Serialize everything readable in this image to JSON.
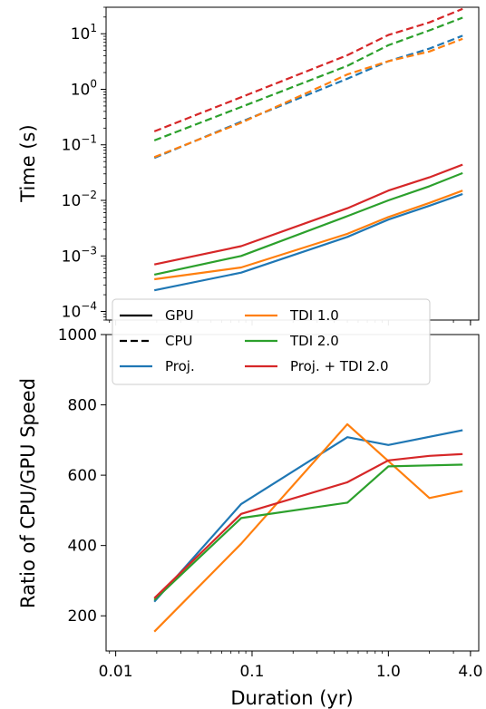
{
  "chart_data": [
    {
      "type": "line",
      "ylabel": "Time (s)",
      "yscale": "log",
      "xscale": "log",
      "xlim": [
        0.0085,
        4.6
      ],
      "ylim": [
        7e-05,
        30
      ],
      "yticks": [
        {
          "value": 0.0001,
          "base": "10",
          "exp": "−4"
        },
        {
          "value": 0.001,
          "base": "10",
          "exp": "−3"
        },
        {
          "value": 0.01,
          "base": "10",
          "exp": "−2"
        },
        {
          "value": 0.1,
          "base": "10",
          "exp": "−1"
        },
        {
          "value": 1,
          "base": "10",
          "exp": "0"
        },
        {
          "value": 10,
          "base": "10",
          "exp": "1"
        }
      ],
      "x": [
        0.0192,
        0.0833,
        0.5,
        1.0,
        2.0,
        3.5
      ],
      "series": [
        {
          "name": "Proj.",
          "device": "GPU",
          "color": "#1f77b4",
          "dash": "solid",
          "values": [
            0.00024,
            0.0005,
            0.0022,
            0.0045,
            0.008,
            0.013
          ]
        },
        {
          "name": "TDI 1.0",
          "device": "GPU",
          "color": "#ff7f0e",
          "dash": "solid",
          "values": [
            0.00038,
            0.00062,
            0.0025,
            0.005,
            0.009,
            0.015
          ]
        },
        {
          "name": "TDI 2.0",
          "device": "GPU",
          "color": "#2ca02c",
          "dash": "solid",
          "values": [
            0.00046,
            0.001,
            0.0052,
            0.01,
            0.018,
            0.031
          ]
        },
        {
          "name": "Proj. + TDI 2.0",
          "device": "GPU",
          "color": "#d62728",
          "dash": "solid",
          "values": [
            0.0007,
            0.0015,
            0.0072,
            0.015,
            0.026,
            0.044
          ]
        },
        {
          "name": "Proj.",
          "device": "CPU",
          "color": "#1f77b4",
          "dash": "dashed",
          "values": [
            0.058,
            0.26,
            1.55,
            3.2,
            5.4,
            9.2
          ]
        },
        {
          "name": "TDI 1.0",
          "device": "CPU",
          "color": "#ff7f0e",
          "dash": "dashed",
          "values": [
            0.06,
            0.25,
            1.85,
            3.2,
            4.8,
            8.1
          ]
        },
        {
          "name": "TDI 2.0",
          "device": "CPU",
          "color": "#2ca02c",
          "dash": "dashed",
          "values": [
            0.12,
            0.48,
            2.65,
            6.2,
            11.5,
            19.5
          ]
        },
        {
          "name": "Proj. + TDI 2.0",
          "device": "CPU",
          "color": "#d62728",
          "dash": "dashed",
          "values": [
            0.175,
            0.72,
            4.1,
            9.5,
            16.0,
            28.0
          ]
        }
      ]
    },
    {
      "type": "line",
      "xlabel": "Duration (yr)",
      "ylabel": "Ratio of CPU/GPU Speed",
      "xscale": "log",
      "xlim": [
        0.0085,
        4.6
      ],
      "ylim": [
        100,
        1000
      ],
      "xticks": [
        {
          "value": 0.01,
          "label": "0.01"
        },
        {
          "value": 0.1,
          "label": "0.1"
        },
        {
          "value": 1.0,
          "label": "1.0"
        },
        {
          "value": 4.0,
          "label": "4.0"
        }
      ],
      "yticks": [
        {
          "value": 200,
          "label": "200"
        },
        {
          "value": 400,
          "label": "400"
        },
        {
          "value": 600,
          "label": "600"
        },
        {
          "value": 800,
          "label": "800"
        },
        {
          "value": 1000,
          "label": "1000"
        }
      ],
      "x": [
        0.0192,
        0.0833,
        0.5,
        1.0,
        2.0,
        3.5
      ],
      "series": [
        {
          "name": "Proj.",
          "color": "#1f77b4",
          "values": [
            240,
            518,
            708,
            686,
            null,
            728
          ]
        },
        {
          "name": "TDI 1.0",
          "color": "#ff7f0e",
          "values": [
            155,
            405,
            745,
            640,
            535,
            555
          ]
        },
        {
          "name": "TDI 2.0",
          "color": "#2ca02c",
          "values": [
            245,
            478,
            522,
            625,
            628,
            630
          ]
        },
        {
          "name": "Proj. + TDI 2.0",
          "color": "#d62728",
          "values": [
            250,
            490,
            580,
            642,
            655,
            660
          ]
        }
      ]
    }
  ],
  "legend": {
    "placement": "upper-left of lower panel",
    "entries": [
      {
        "label": "GPU",
        "color": "#000000",
        "dash": "solid"
      },
      {
        "label": "CPU",
        "color": "#000000",
        "dash": "dashed"
      },
      {
        "label": "Proj.",
        "color": "#1f77b4",
        "dash": "solid"
      },
      {
        "label": "TDI 1.0",
        "color": "#ff7f0e",
        "dash": "solid"
      },
      {
        "label": "TDI 2.0",
        "color": "#2ca02c",
        "dash": "solid"
      },
      {
        "label": "Proj. + TDI 2.0",
        "color": "#d62728",
        "dash": "solid"
      }
    ]
  }
}
